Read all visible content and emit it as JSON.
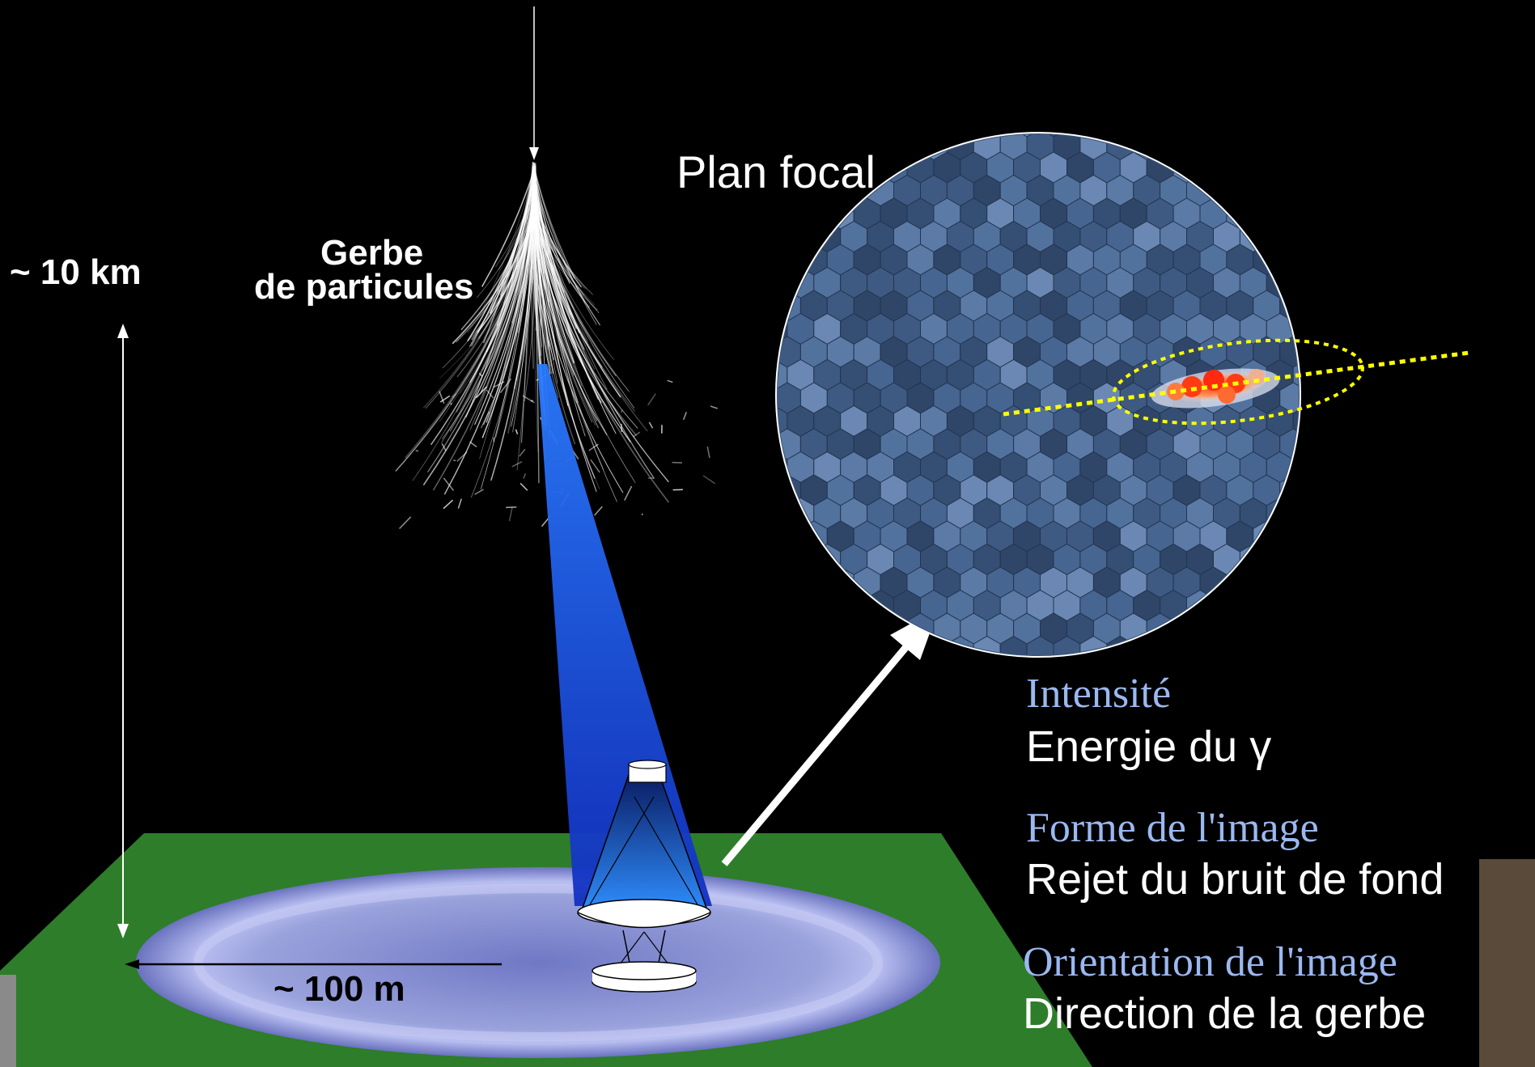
{
  "labels": {
    "altitude": "~ 10 km",
    "shower_line1": "Gerbe",
    "shower_line2": "de particules",
    "focal_plane": "Plan focal",
    "ground_size": "~ 100 m"
  },
  "legend": [
    {
      "param": "Intensité",
      "meaning": "Energie du γ"
    },
    {
      "param": "Forme de l'image",
      "meaning": "Rejet du bruit de fond"
    },
    {
      "param": "Orientation de l'image",
      "meaning": "Direction de la gerbe"
    }
  ],
  "colors": {
    "background": "#000000",
    "ground": "#2e7d2a",
    "pool": "#8a91d0",
    "light_cone": "#1f5fe0",
    "camera": "#3f5b82",
    "ellipse": "#ffff00",
    "param_text": "#9bb8f0",
    "text": "#ffffff"
  }
}
